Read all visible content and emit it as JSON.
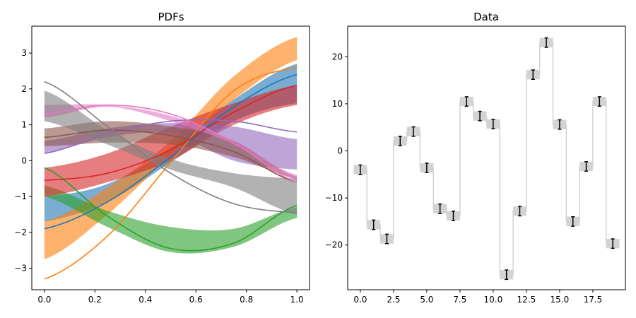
{
  "chart_data": [
    {
      "type": "line",
      "title": "PDFs",
      "xlabel": "",
      "ylabel": "",
      "xlim": [
        -0.05,
        1.05
      ],
      "ylim": [
        -3.6,
        3.75
      ],
      "xticks": [
        0.0,
        0.2,
        0.4,
        0.6,
        0.8,
        1.0
      ],
      "xtick_labels": [
        "0.0",
        "0.2",
        "0.4",
        "0.6",
        "0.8",
        "1.0"
      ],
      "yticks": [
        -3,
        -2,
        -1,
        0,
        1,
        2,
        3
      ],
      "ytick_labels": [
        "−3",
        "−2",
        "−1",
        "0",
        "1",
        "2",
        "3"
      ],
      "x": [
        0.0,
        0.25,
        0.5,
        0.75,
        1.0
      ],
      "series": [
        {
          "color": "#1f77b4",
          "line": [
            -1.9,
            -1.15,
            0.1,
            1.5,
            2.4
          ],
          "band_lower": [
            -1.7,
            -1.15,
            -0.05,
            1.1,
            1.6
          ],
          "band_upper": [
            -1.0,
            -0.65,
            0.35,
            1.7,
            2.7
          ]
        },
        {
          "color": "#ff7f0e",
          "line": [
            -3.3,
            -2.1,
            -0.05,
            1.95,
            2.6
          ],
          "band_lower": [
            -2.75,
            -1.5,
            0.15,
            1.7,
            2.8
          ],
          "band_upper": [
            -1.7,
            -0.75,
            0.55,
            2.35,
            3.45
          ]
        },
        {
          "color": "#2ca02c",
          "line": [
            -0.2,
            -1.55,
            -2.45,
            -2.3,
            -1.25
          ],
          "band_lower": [
            -1.0,
            -1.85,
            -2.55,
            -2.4,
            -1.6
          ],
          "band_upper": [
            -0.7,
            -1.4,
            -1.85,
            -1.9,
            -1.3
          ]
        },
        {
          "color": "#d62728",
          "line": [
            -0.55,
            -0.35,
            0.3,
            1.35,
            2.1
          ],
          "band_lower": [
            -1.0,
            -0.6,
            0.0,
            1.0,
            1.55
          ],
          "band_upper": [
            -0.2,
            0.2,
            0.95,
            1.6,
            2.1
          ]
        },
        {
          "color": "#9467bd",
          "line": [
            0.2,
            0.75,
            1.1,
            1.1,
            0.8
          ],
          "band_lower": [
            0.2,
            0.65,
            0.75,
            0.0,
            -0.25
          ],
          "band_upper": [
            0.55,
            0.9,
            1.05,
            0.95,
            0.6
          ]
        },
        {
          "color": "#8c564b",
          "line": [
            0.65,
            0.85,
            0.7,
            0.25,
            -0.6
          ],
          "band_lower": [
            0.4,
            0.5,
            0.45,
            0.1,
            -0.5
          ],
          "band_upper": [
            0.9,
            1.1,
            0.95,
            0.55,
            -0.45
          ]
        },
        {
          "color": "#e377c2",
          "line": [
            1.3,
            1.55,
            1.3,
            0.5,
            -0.6
          ],
          "band_lower": [
            1.2,
            1.5,
            1.1,
            0.45,
            -0.55
          ],
          "band_upper": [
            1.55,
            1.55,
            1.25,
            0.55,
            -0.4
          ]
        },
        {
          "color": "#7f7f7f",
          "line": [
            2.2,
            0.95,
            -0.35,
            -1.2,
            -1.45
          ],
          "band_lower": [
            1.1,
            0.45,
            -0.25,
            -0.75,
            -1.5
          ],
          "band_upper": [
            1.95,
            0.85,
            0.05,
            -0.35,
            -0.5
          ]
        }
      ]
    },
    {
      "type": "step",
      "title": "Data",
      "xlabel": "",
      "ylabel": "",
      "xlim": [
        -0.95,
        19.95
      ],
      "ylim": [
        -29.5,
        26.5
      ],
      "xticks": [
        0.0,
        2.5,
        5.0,
        7.5,
        10.0,
        12.5,
        15.0,
        17.5
      ],
      "xtick_labels": [
        "0.0",
        "2.5",
        "5.0",
        "7.5",
        "10.0",
        "12.5",
        "15.0",
        "17.5"
      ],
      "yticks": [
        -20,
        -10,
        0,
        10,
        20
      ],
      "ytick_labels": [
        "−20",
        "−10",
        "0",
        "10",
        "20"
      ],
      "x": [
        0,
        1,
        2,
        3,
        4,
        5,
        6,
        7,
        8,
        9,
        10,
        11,
        12,
        13,
        14,
        15,
        16,
        17,
        18,
        19
      ],
      "values": [
        -4.0,
        -15.7,
        -18.7,
        2.1,
        4.1,
        -3.6,
        -12.3,
        -13.8,
        10.5,
        7.4,
        5.7,
        -26.3,
        -12.8,
        16.2,
        23.0,
        5.6,
        -15.0,
        -3.3,
        10.5,
        -19.7
      ],
      "error": [
        1.0,
        1.0,
        1.0,
        1.0,
        1.0,
        1.0,
        1.0,
        1.0,
        1.0,
        1.0,
        1.0,
        1.0,
        1.0,
        1.0,
        1.0,
        1.0,
        1.0,
        1.0,
        1.0,
        1.0
      ],
      "step_color": "#d3d3d3",
      "marker_color": "#000000"
    }
  ]
}
